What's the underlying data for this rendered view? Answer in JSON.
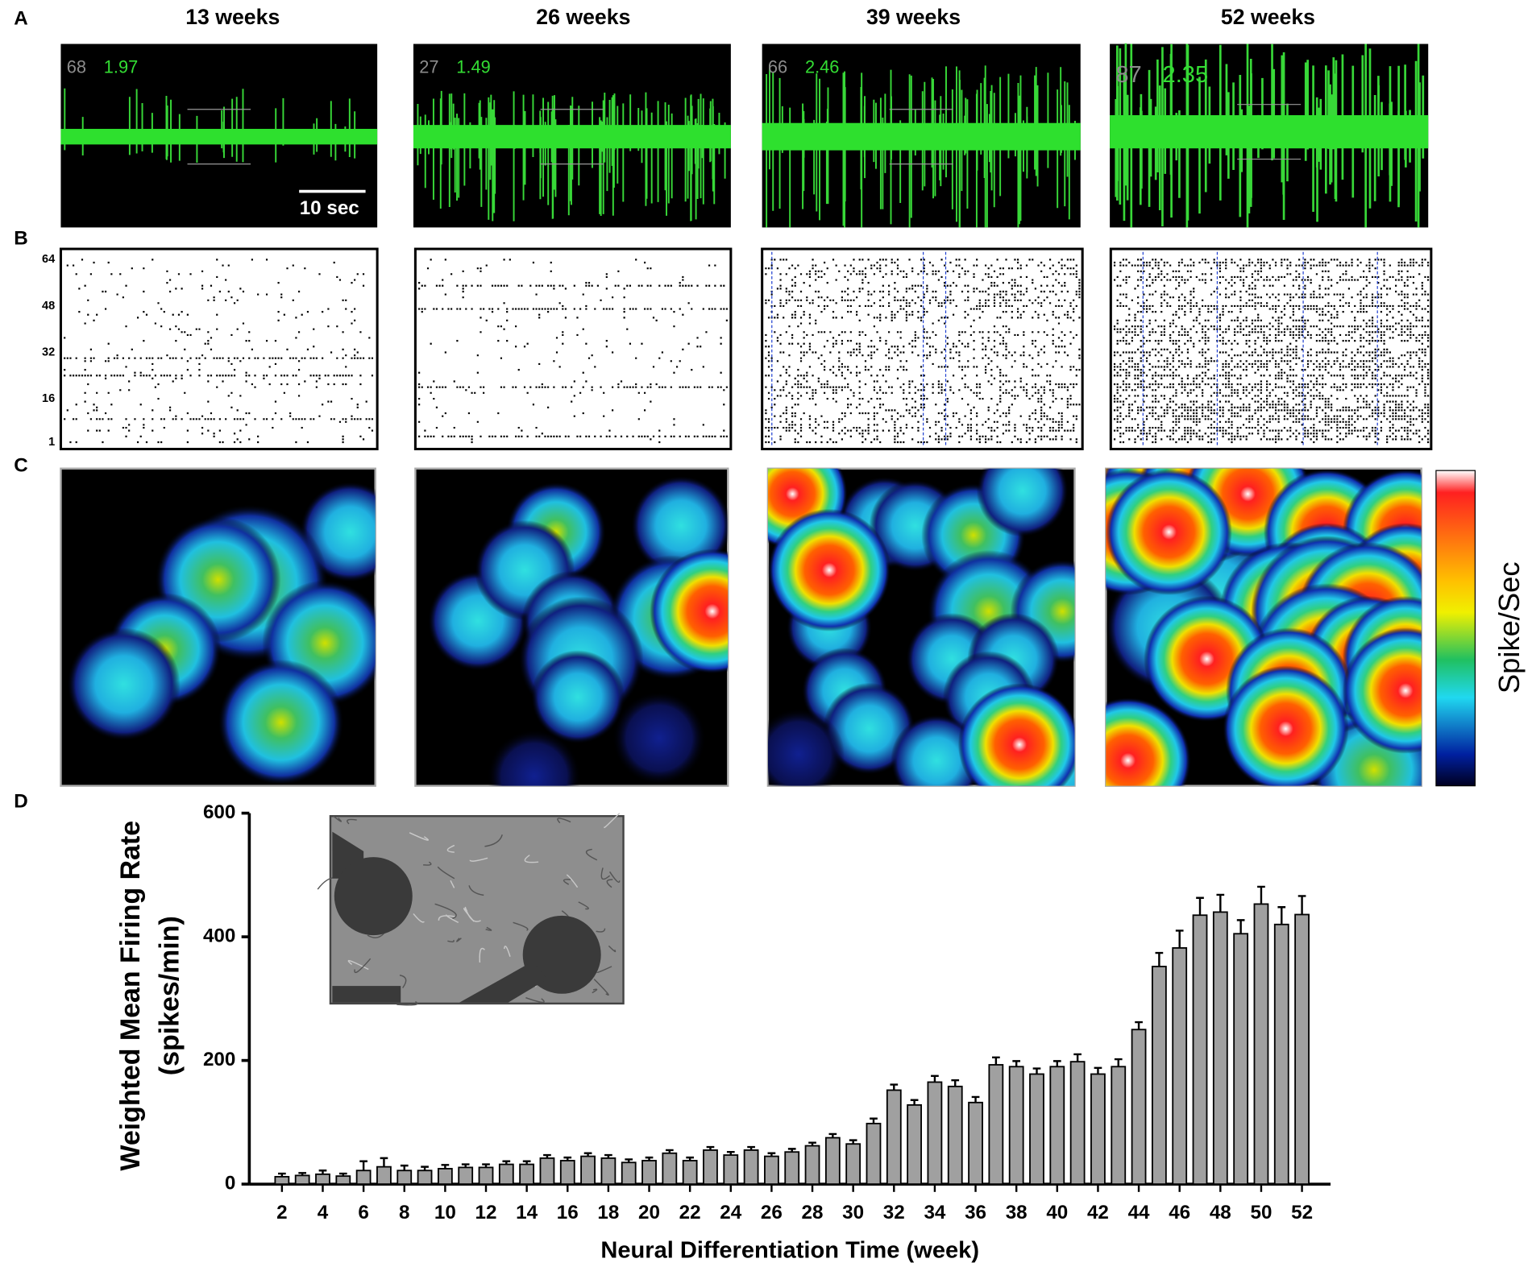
{
  "figure": {
    "panel_labels": [
      "A",
      "B",
      "C",
      "D"
    ],
    "columns": [
      "13 weeks",
      "26 weeks",
      "39 weeks",
      "52 weeks"
    ],
    "trace_labels": [
      [
        "68",
        "1.97"
      ],
      [
        "27",
        "1.49"
      ],
      [
        "66",
        "2.46"
      ],
      [
        "87",
        "2.35"
      ]
    ],
    "scale_bar": "10 sec",
    "raster_yticks": [
      64,
      48,
      32,
      16,
      1
    ],
    "colorbar_label": "Spike/Sec"
  },
  "chart_data": {
    "type": "bar",
    "ylabel": [
      "Weighted Mean Firing Rate",
      "(spikes/min)"
    ],
    "xlabel": "Neural Differentiation Time (week)",
    "x": [
      2,
      3,
      4,
      5,
      6,
      7,
      8,
      9,
      10,
      11,
      12,
      13,
      14,
      15,
      16,
      17,
      18,
      19,
      20,
      21,
      22,
      23,
      24,
      25,
      26,
      27,
      28,
      29,
      30,
      31,
      32,
      33,
      34,
      35,
      36,
      37,
      38,
      39,
      40,
      41,
      42,
      43,
      44,
      45,
      46,
      47,
      48,
      49,
      50,
      51,
      52
    ],
    "values": [
      12,
      14,
      16,
      13,
      22,
      28,
      22,
      22,
      25,
      27,
      27,
      32,
      32,
      42,
      38,
      45,
      42,
      35,
      38,
      50,
      38,
      55,
      47,
      55,
      45,
      52,
      62,
      75,
      65,
      98,
      152,
      128,
      165,
      158,
      132,
      193,
      190,
      178,
      190,
      198,
      178,
      190,
      250,
      352,
      382,
      435,
      440,
      405,
      453,
      420,
      436
    ],
    "errors": [
      5,
      4,
      6,
      4,
      15,
      14,
      8,
      6,
      6,
      5,
      5,
      5,
      5,
      5,
      5,
      5,
      5,
      5,
      5,
      5,
      5,
      5,
      5,
      5,
      5,
      5,
      5,
      6,
      6,
      8,
      9,
      8,
      10,
      10,
      9,
      12,
      9,
      9,
      9,
      12,
      10,
      12,
      12,
      22,
      28,
      28,
      28,
      22,
      28,
      28,
      30
    ],
    "color": "#a0a0a0",
    "xlim": [
      0.4,
      53.4
    ],
    "xticks": [
      2,
      4,
      6,
      8,
      10,
      12,
      14,
      16,
      18,
      20,
      22,
      24,
      26,
      28,
      30,
      32,
      34,
      36,
      38,
      40,
      42,
      44,
      46,
      48,
      50,
      52
    ],
    "ylim": [
      0,
      600
    ],
    "yticks": [
      0,
      200,
      400,
      600
    ]
  }
}
